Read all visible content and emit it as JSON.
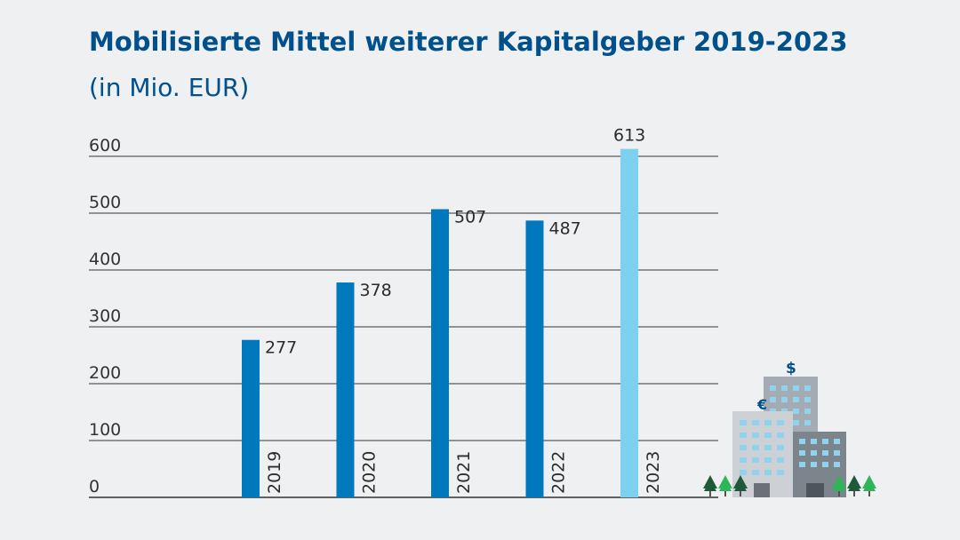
{
  "chart_data": {
    "type": "bar",
    "title": "Mobilisierte Mittel weiterer Kapitalgeber 2019-2023",
    "subtitle": "(in Mio. EUR)",
    "categories": [
      "2019",
      "2020",
      "2021",
      "2022",
      "2023"
    ],
    "values": [
      277,
      378,
      507,
      487,
      613
    ],
    "value_labels": [
      "277",
      "378",
      "507",
      "487",
      "613"
    ],
    "ylim": [
      0,
      600
    ],
    "yticks": [
      0,
      100,
      200,
      300,
      400,
      500,
      600
    ],
    "ytick_labels": [
      "0",
      "100",
      "200",
      "300",
      "400",
      "500",
      "600"
    ],
    "xlabel": "",
    "ylabel": "",
    "grid": true,
    "colors": {
      "bar": "#0078be",
      "highlight_bar": "#7dd0f0",
      "title": "#00508c",
      "grid": "#333333"
    },
    "highlight_index": 4
  },
  "illustration": {
    "icon": "office-buildings-with-currency-icon",
    "symbols": [
      "$",
      "€"
    ]
  }
}
